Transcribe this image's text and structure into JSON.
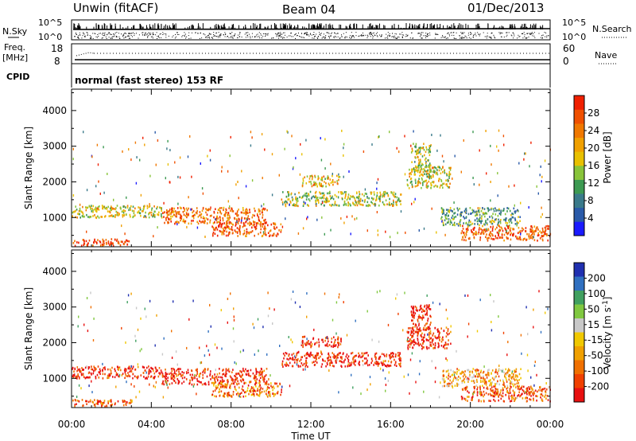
{
  "header": {
    "station": "Unwin (fitACF)",
    "beam": "Beam 04",
    "date": "01/Dec/2013"
  },
  "summary": {
    "left_top_label": "N.Sky",
    "right_top_label": "N.Search",
    "log_hi": "10^5",
    "log_lo": "10^0",
    "freq_label": "Freq.",
    "freq_unit": "[MHz]",
    "freq_hi": "18",
    "freq_lo": "8",
    "nave_label": "Nave",
    "nave_hi": "60",
    "nave_lo": "0",
    "cpid_label": "CPID",
    "cpid_text": "normal (fast stereo) 153 RF"
  },
  "chart_data": [
    {
      "type": "heatmap",
      "quantity": "Power",
      "xlabel": "Time UT",
      "ylabel": "Slant Range [km]",
      "x_ticks": [
        "00:00",
        "04:00",
        "08:00",
        "12:00",
        "16:00",
        "20:00",
        "00:00"
      ],
      "x_range_hours": [
        0,
        24
      ],
      "y_ticks": [
        1000,
        2000,
        3000,
        4000
      ],
      "ylim": [
        180,
        4600
      ],
      "colorbar": {
        "label": "Power [dB]",
        "ticks": [
          "4",
          "8",
          "12",
          "16",
          "20",
          "24",
          "28"
        ],
        "colors": [
          "#1a1aff",
          "#2a5aa8",
          "#3a7a8a",
          "#3d9a52",
          "#88c43a",
          "#e8c000",
          "#f0a000",
          "#f07800",
          "#f05000",
          "#f02000"
        ]
      },
      "echo_regions": [
        {
          "t": [
            0.0,
            4.5
          ],
          "r": [
            1020,
            1360
          ],
          "level": 0.55
        },
        {
          "t": [
            4.5,
            9.8
          ],
          "r": [
            850,
            1300
          ],
          "level": 0.8
        },
        {
          "t": [
            7.0,
            10.5
          ],
          "r": [
            500,
            900
          ],
          "level": 0.85
        },
        {
          "t": [
            0.0,
            3.0
          ],
          "r": [
            230,
            430
          ],
          "level": 0.92
        },
        {
          "t": [
            10.5,
            16.5
          ],
          "r": [
            1350,
            1750
          ],
          "level": 0.5
        },
        {
          "t": [
            11.5,
            13.5
          ],
          "r": [
            1900,
            2200
          ],
          "level": 0.62
        },
        {
          "t": [
            16.8,
            19.0
          ],
          "r": [
            1850,
            2450
          ],
          "level": 0.55
        },
        {
          "t": [
            17.0,
            18.0
          ],
          "r": [
            2300,
            3100
          ],
          "level": 0.5
        },
        {
          "t": [
            18.5,
            22.5
          ],
          "r": [
            800,
            1300
          ],
          "level": 0.35
        },
        {
          "t": [
            19.5,
            24.0
          ],
          "r": [
            380,
            800
          ],
          "level": 0.85
        }
      ]
    },
    {
      "type": "heatmap",
      "quantity": "Velocity",
      "xlabel": "Time UT",
      "ylabel": "Slant Range [km]",
      "x_ticks": [
        "00:00",
        "04:00",
        "08:00",
        "12:00",
        "16:00",
        "20:00",
        "00:00"
      ],
      "x_range_hours": [
        0,
        24
      ],
      "y_ticks": [
        1000,
        2000,
        3000,
        4000
      ],
      "ylim": [
        180,
        4600
      ],
      "colorbar": {
        "label": "Velocity [m s^-1]",
        "ticks": [
          "200",
          "100",
          "50",
          "15",
          "-15",
          "-50",
          "-100",
          "-200"
        ],
        "colors": [
          "#2030b0",
          "#3070c0",
          "#40a060",
          "#80c840",
          "#c8c8c8",
          "#f0c800",
          "#f0a000",
          "#f07000",
          "#f04000",
          "#e81010"
        ]
      },
      "echo_regions": [
        {
          "t": [
            0.0,
            4.5
          ],
          "r": [
            1020,
            1360
          ],
          "level": 0.9
        },
        {
          "t": [
            4.5,
            9.8
          ],
          "r": [
            850,
            1300
          ],
          "level": 0.9
        },
        {
          "t": [
            7.0,
            10.5
          ],
          "r": [
            500,
            900
          ],
          "level": 0.75
        },
        {
          "t": [
            0.0,
            3.0
          ],
          "r": [
            230,
            430
          ],
          "level": 0.8
        },
        {
          "t": [
            10.5,
            16.5
          ],
          "r": [
            1350,
            1750
          ],
          "level": 0.92
        },
        {
          "t": [
            11.5,
            13.5
          ],
          "r": [
            1900,
            2200
          ],
          "level": 0.95
        },
        {
          "t": [
            16.8,
            19.0
          ],
          "r": [
            1850,
            2450
          ],
          "level": 0.9
        },
        {
          "t": [
            17.0,
            18.0
          ],
          "r": [
            2300,
            3100
          ],
          "level": 0.93
        },
        {
          "t": [
            18.5,
            22.5
          ],
          "r": [
            800,
            1300
          ],
          "level": 0.65
        },
        {
          "t": [
            19.5,
            24.0
          ],
          "r": [
            380,
            800
          ],
          "level": 0.82
        }
      ]
    }
  ]
}
